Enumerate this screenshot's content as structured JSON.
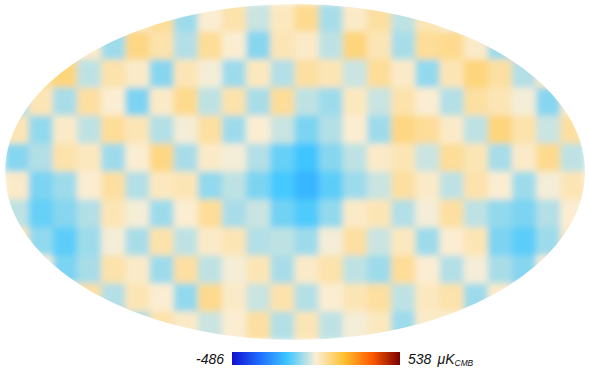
{
  "chart_data": {
    "type": "heatmap",
    "cells": [
      [
        20,
        -40,
        60,
        80,
        -30,
        40,
        90,
        -60,
        30,
        70,
        -20,
        50,
        100,
        -50,
        40,
        80,
        -30,
        60,
        20,
        -70,
        50,
        30,
        -40,
        10
      ],
      [
        -50,
        80,
        100,
        40,
        -60,
        110,
        70,
        -40,
        90,
        30,
        -80,
        60,
        40,
        -30,
        120,
        60,
        -50,
        90,
        100,
        40,
        -60,
        80,
        20,
        -30
      ],
      [
        30,
        90,
        120,
        -30,
        70,
        40,
        -80,
        60,
        20,
        -60,
        50,
        -40,
        80,
        60,
        -20,
        90,
        40,
        -70,
        60,
        120,
        80,
        -40,
        50,
        60
      ],
      [
        -40,
        60,
        -50,
        80,
        30,
        -90,
        40,
        100,
        -30,
        70,
        -50,
        90,
        -30,
        -60,
        50,
        -20,
        70,
        30,
        -40,
        80,
        60,
        20,
        -80,
        40
      ],
      [
        60,
        -70,
        40,
        -30,
        90,
        60,
        -40,
        20,
        80,
        -60,
        30,
        -20,
        -90,
        -40,
        30,
        -60,
        110,
        90,
        40,
        -30,
        120,
        70,
        -20,
        80
      ],
      [
        -80,
        -40,
        70,
        50,
        -60,
        30,
        110,
        -50,
        40,
        20,
        -40,
        -110,
        -150,
        -80,
        -30,
        40,
        60,
        -20,
        90,
        60,
        -50,
        40,
        100,
        -30
      ],
      [
        40,
        -90,
        -60,
        30,
        80,
        -40,
        50,
        60,
        -70,
        -30,
        -90,
        -140,
        -180,
        -120,
        -60,
        -20,
        80,
        40,
        -30,
        70,
        30,
        -60,
        20,
        60
      ],
      [
        -30,
        -110,
        -80,
        -40,
        60,
        20,
        -60,
        30,
        90,
        -50,
        -20,
        -100,
        -130,
        -70,
        40,
        60,
        -40,
        20,
        80,
        -30,
        -70,
        -90,
        -40,
        30
      ],
      [
        60,
        -70,
        -120,
        -60,
        20,
        -50,
        70,
        -30,
        40,
        60,
        -40,
        -30,
        -60,
        20,
        80,
        -20,
        50,
        -60,
        30,
        60,
        -90,
        -120,
        -60,
        40
      ],
      [
        -40,
        30,
        -90,
        -50,
        70,
        40,
        -60,
        80,
        -30,
        20,
        60,
        -50,
        40,
        70,
        -30,
        -60,
        90,
        30,
        -40,
        20,
        -50,
        -80,
        30,
        -20
      ],
      [
        50,
        -30,
        40,
        80,
        -40,
        60,
        30,
        -70,
        100,
        40,
        -20,
        70,
        -40,
        30,
        60,
        80,
        -30,
        50,
        70,
        -60,
        40,
        -30,
        60,
        20
      ],
      [
        -20,
        40,
        -30,
        60,
        20,
        -50,
        70,
        40,
        -20,
        30,
        80,
        -40,
        60,
        -30,
        20,
        50,
        -60,
        40,
        30,
        50,
        -20,
        40,
        -30,
        10
      ]
    ],
    "colorbar": {
      "range": [
        -486,
        538
      ],
      "ticks": [
        -486,
        538
      ],
      "label": "μK",
      "label_sub": "CMB"
    }
  }
}
